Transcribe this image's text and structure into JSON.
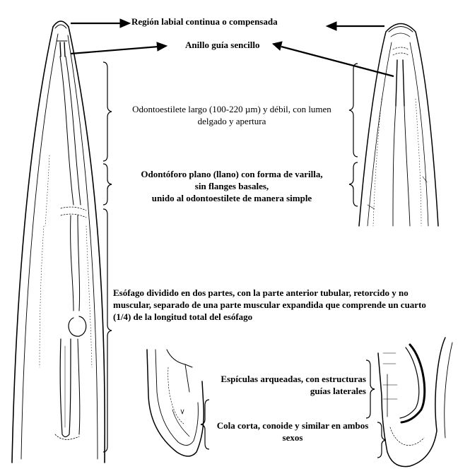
{
  "labels": {
    "labial_region": "Región labial continua o compensada",
    "guide_ring": "Anillo guía sencillo",
    "odontostyle_1": "Odontoestilete largo (100-220 µm) y débil, con lumen",
    "odontostyle_2": "delgado y apertura",
    "odontophore_1": "Odontóforo plano (llano) con forma de varilla,",
    "odontophore_2": "sin flanges basales,",
    "odontophore_3": "unido al odontoestilete de manera simple",
    "esophagus_1": "Esófago dividido en dos partes, con la parte anterior tubular, retorcido y no",
    "esophagus_2": "muscular, separado de una parte muscular expandida que comprende un cuarto",
    "esophagus_3": "(1/4) de la longitud total del esófago",
    "spicules_1": "Espículas arqueadas, con estructuras",
    "spicules_2": "guías laterales",
    "tail_1": "Cola corta, conoide y similar en ambos",
    "tail_2": "sexos"
  },
  "colors": {
    "ink": "#000000",
    "background": "#ffffff"
  }
}
